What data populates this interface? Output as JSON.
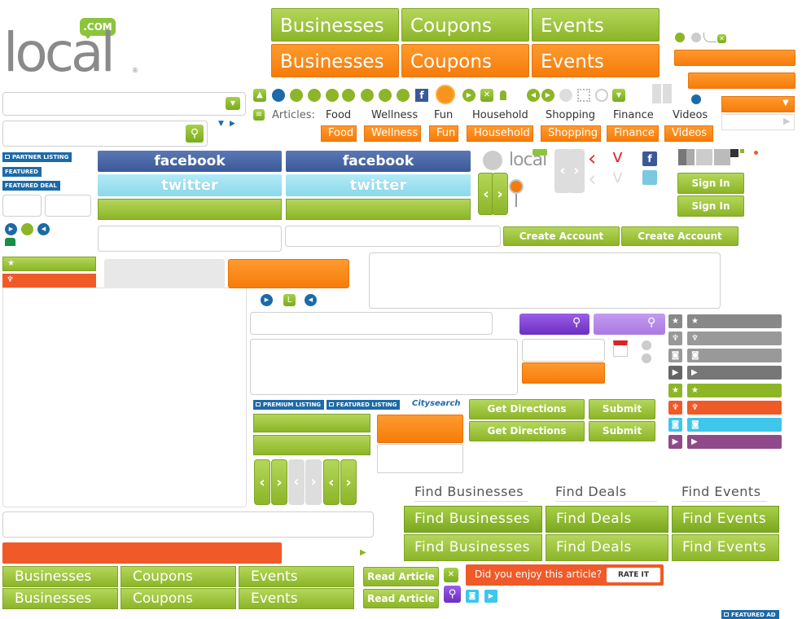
{
  "logo": {
    "word": "local",
    "badge": ".COM",
    "mark": "®",
    "small_word": "local"
  },
  "nav_tabs": [
    "Businesses",
    "Coupons",
    "Events"
  ],
  "articles": {
    "label": "Articles:",
    "links": [
      "Food",
      "Wellness",
      "Fun",
      "Household",
      "Shopping",
      "Finance",
      "Videos"
    ],
    "buttons": [
      "Food",
      "Wellness",
      "Fun",
      "Household",
      "Shopping",
      "Finance",
      "Videos"
    ]
  },
  "badges": {
    "partner_listing": "PARTNER LISTING",
    "featured": "FEATURED",
    "featured_deal": "FEATURED DEAL",
    "premium_listing": "PREMIUM LISTING",
    "featured_listing": "FEATURED LISTING",
    "featured_ad": "FEATURED AD"
  },
  "social": {
    "facebook": "facebook",
    "twitter": "twitter"
  },
  "buttons": {
    "sign_in": "Sign In",
    "create_account": "Create Account",
    "get_directions": "Get Directions",
    "submit": "Submit",
    "read_article": "Read Article",
    "rate_it": "RATE IT"
  },
  "citysearch": "Citysearch",
  "find": [
    "Find Businesses",
    "Find Deals",
    "Find Events"
  ],
  "rate_prompt": "Did you enjoy this article?",
  "icons": {
    "star": "★",
    "ribbon": "♆",
    "camera": "◙",
    "tag": "▶",
    "close": "✕",
    "search": "⚲",
    "play": "▶",
    "prev": "◀",
    "chev_left": "‹",
    "chev_right": "›",
    "arrow_right": "▶",
    "arrow_down": "▼"
  },
  "colors": {
    "green": "#8cb528",
    "orange": "#f57c0a",
    "blue": "#1c6aa8",
    "purple": "#7b3fd0",
    "red": "#f05a28"
  }
}
